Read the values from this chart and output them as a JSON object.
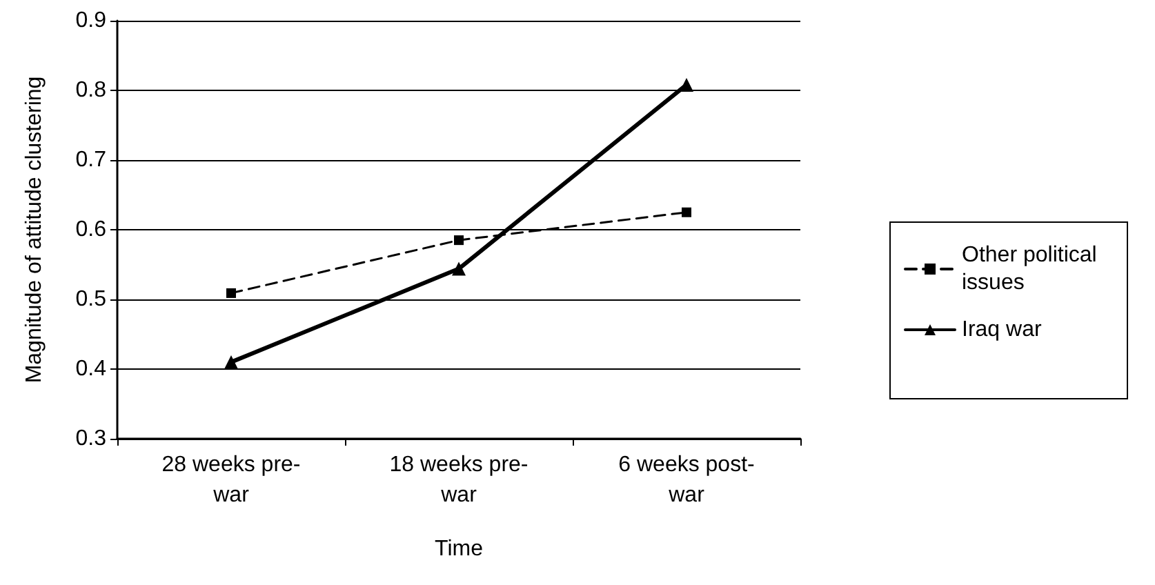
{
  "chart_data": {
    "type": "line",
    "xlabel": "Time",
    "ylabel": "Magnitude of attitude clustering",
    "categories": [
      "28 weeks pre-war",
      "18 weeks pre-war",
      "6 weeks post-war"
    ],
    "series": [
      {
        "name": "Other political issues",
        "color": "#000000",
        "values": [
          0.509,
          0.585,
          0.625
        ],
        "marker": "square",
        "line_style": "dashed"
      },
      {
        "name": "Iraq war",
        "color": "#000000",
        "values": [
          0.41,
          0.544,
          0.808
        ],
        "marker": "triangle",
        "line_style": "solid"
      }
    ],
    "ylim": [
      0.3,
      0.9
    ],
    "yticks": [
      0.3,
      0.4,
      0.5,
      0.6,
      0.7,
      0.8,
      0.9
    ],
    "grid": "y",
    "legend": "right"
  }
}
